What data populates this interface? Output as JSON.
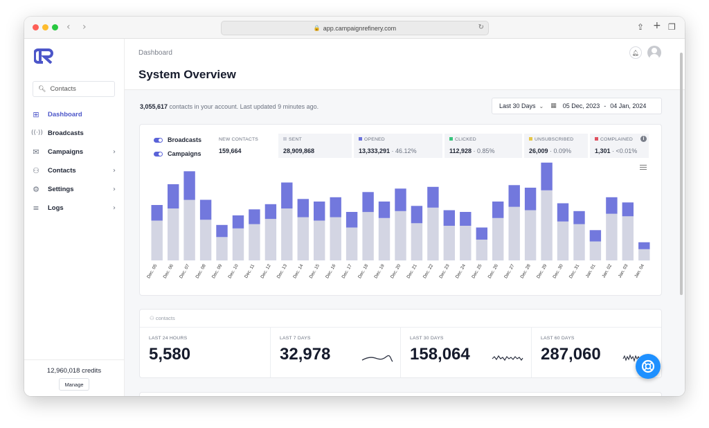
{
  "browser": {
    "url": "app.campaignrefinery.com"
  },
  "sidebar": {
    "search_placeholder": "Contacts",
    "items": [
      {
        "label": "Dashboard",
        "icon": "grid-icon"
      },
      {
        "label": "Broadcasts",
        "icon": "broadcast-icon"
      },
      {
        "label": "Campaigns",
        "icon": "mail-icon"
      },
      {
        "label": "Contacts",
        "icon": "user-icon"
      },
      {
        "label": "Settings",
        "icon": "gear-icon"
      },
      {
        "label": "Logs",
        "icon": "list-icon"
      }
    ],
    "credits": "12,960,018 credits",
    "manage_label": "Manage"
  },
  "header": {
    "breadcrumb": "Dashboard",
    "title": "System Overview"
  },
  "summary": {
    "count": "3,055,617",
    "text": " contacts in your account. Last updated 9 minutes ago."
  },
  "date_filter": {
    "range": "Last 30 Days",
    "start": "05 Dec, 2023",
    "separator": "-",
    "end": "04 Jan, 2024"
  },
  "toggles": [
    {
      "label": "Broadcasts",
      "on": true
    },
    {
      "label": "Campaigns",
      "on": true
    }
  ],
  "stats": [
    {
      "label": "NEW CONTACTS",
      "value": "159,664",
      "pct": "",
      "color": ""
    },
    {
      "label": "SENT",
      "value": "28,909,868",
      "pct": "",
      "color": "#c9ccd6"
    },
    {
      "label": "OPENED",
      "value": "13,333,291",
      "pct": " · 46.12%",
      "color": "#6b73db"
    },
    {
      "label": "CLICKED",
      "value": "112,928",
      "pct": " · 0.85%",
      "color": "#3ac47d"
    },
    {
      "label": "UNSUBSCRIBED",
      "value": "26,009",
      "pct": " · 0.09%",
      "color": "#e6c64a"
    },
    {
      "label": "COMPLAINED",
      "value": "1,301",
      "pct": " · <0.01%",
      "color": "#e05260"
    }
  ],
  "chart_data": {
    "type": "bar",
    "stacked": true,
    "categories": [
      "Dec. 05",
      "Dec. 06",
      "Dec. 07",
      "Dec. 08",
      "Dec. 09",
      "Dec. 10",
      "Dec. 11",
      "Dec. 12",
      "Dec. 13",
      "Dec. 14",
      "Dec. 15",
      "Dec. 16",
      "Dec. 17",
      "Dec. 18",
      "Dec. 19",
      "Dec. 20",
      "Dec. 21",
      "Dec. 22",
      "Dec. 23",
      "Dec. 24",
      "Dec. 25",
      "Dec. 26",
      "Dec. 27",
      "Dec. 28",
      "Dec. 29",
      "Dec. 30",
      "Dec. 31",
      "Jan. 01",
      "Jan. 02",
      "Jan. 03",
      "Jan. 04"
    ],
    "series": [
      {
        "name": "SENT",
        "color": "#d3d5e3",
        "values": [
          46,
          60,
          70,
          47,
          27,
          37,
          42,
          48,
          60,
          50,
          46,
          50,
          38,
          56,
          49,
          57,
          43,
          61,
          40,
          40,
          24,
          49,
          62,
          58,
          81,
          45,
          42,
          22,
          54,
          51,
          13
        ]
      },
      {
        "name": "OPENED",
        "color": "#7278dd",
        "values": [
          18,
          28,
          33,
          23,
          14,
          15,
          17,
          17,
          30,
          21,
          22,
          23,
          18,
          23,
          19,
          26,
          20,
          24,
          18,
          16,
          14,
          19,
          25,
          26,
          32,
          21,
          15,
          13,
          19,
          16,
          8
        ]
      }
    ],
    "ylim": [
      0,
      120
    ],
    "grid": false
  },
  "contacts": {
    "heading": "contacts",
    "stats": [
      {
        "label": "LAST 24 HOURS",
        "value": "5,580"
      },
      {
        "label": "LAST 7 DAYS",
        "value": "32,978"
      },
      {
        "label": "LAST 30 DAYS",
        "value": "158,064"
      },
      {
        "label": "LAST 60 DAYS",
        "value": "287,060"
      }
    ]
  }
}
